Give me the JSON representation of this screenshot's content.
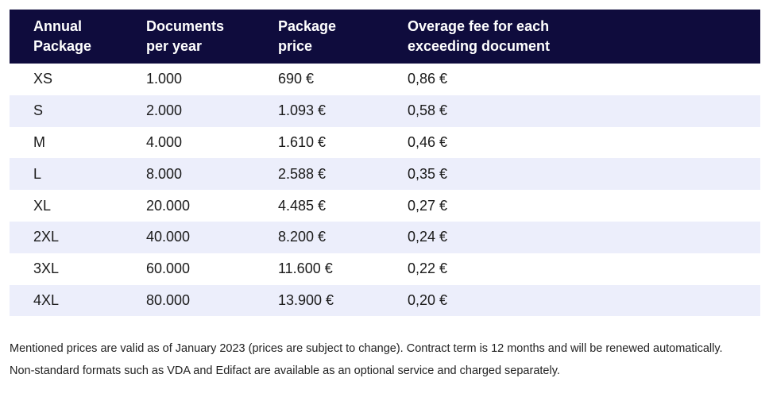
{
  "table": {
    "headers": [
      [
        "Annual",
        "Package"
      ],
      [
        "Documents",
        "per year"
      ],
      [
        "Package",
        "price"
      ],
      [
        "Overage fee for each",
        "exceeding document"
      ]
    ],
    "rows": [
      [
        "XS",
        "1.000",
        "690 €",
        "0,86 €"
      ],
      [
        "S",
        "2.000",
        "1.093 €",
        "0,58 €"
      ],
      [
        "M",
        "4.000",
        "1.610 €",
        "0,46 €"
      ],
      [
        "L",
        "8.000",
        "2.588 €",
        "0,35 €"
      ],
      [
        "XL",
        "20.000",
        "4.485 €",
        "0,27 €"
      ],
      [
        "2XL",
        "40.000",
        "8.200 €",
        "0,24 €"
      ],
      [
        "3XL",
        "60.000",
        "11.600 €",
        "0,22 €"
      ],
      [
        "4XL",
        "80.000",
        "13.900 €",
        "0,20 €"
      ]
    ]
  },
  "notes": {
    "validity": "Mentioned prices are valid as of January 2023 (prices are subject to change). Contract term is 12 months and will be renewed automatically.",
    "formats": "Non-standard formats such as VDA and Edifact are available as an optional service and charged separately."
  },
  "colors": {
    "header_bg": "#0f0c3d",
    "header_text": "#ffffff",
    "alt_row_bg": "#eceefb"
  }
}
